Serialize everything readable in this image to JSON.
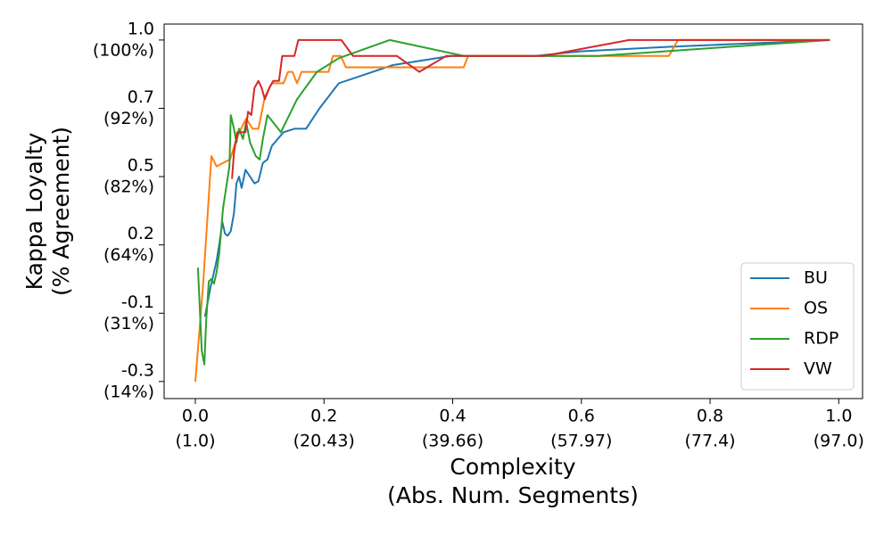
{
  "chart_data": {
    "type": "line",
    "x_label": [
      "Complexity",
      "(Abs. Num. Segments)"
    ],
    "y_label": [
      "Kappa Loyalty",
      "(% Agreement)"
    ],
    "xlim": [
      -0.0485,
      1.037
    ],
    "ylim": [
      -0.35,
      1.07
    ],
    "y_scale": "piecewise",
    "xticks": [
      {
        "value": 0,
        "label": "0.0",
        "label2": "(1.0)"
      },
      {
        "value": 0.2,
        "label": "0.2",
        "label2": "(20.43)"
      },
      {
        "value": 0.4,
        "label": "0.4",
        "label2": "(39.66)"
      },
      {
        "value": 0.6,
        "label": "0.6",
        "label2": "(57.97)"
      },
      {
        "value": 0.8,
        "label": "0.8",
        "label2": "(77.4)"
      },
      {
        "value": 1,
        "label": "1.0",
        "label2": "(97.0)"
      }
    ],
    "yticks": [
      {
        "value": -0.3,
        "label": "-0.3",
        "label2": "(14%)"
      },
      {
        "value": -0.1,
        "label": "-0.1",
        "label2": "(31%)"
      },
      {
        "value": 0.2,
        "label": "0.2",
        "label2": "(64%)"
      },
      {
        "value": 0.5,
        "label": "0.5",
        "label2": "(82%)"
      },
      {
        "value": 0.7,
        "label": "0.7",
        "label2": "(92%)"
      },
      {
        "value": 1,
        "label": "1.0",
        "label2": "(100%)"
      }
    ],
    "legend": "lower right",
    "series": [
      {
        "name": "BU",
        "color": "#1f77b4",
        "x": [
          0.015,
          0.024,
          0.029,
          0.033,
          0.037,
          0.042,
          0.046,
          0.05,
          0.055,
          0.06,
          0.064,
          0.068,
          0.072,
          0.078,
          0.085,
          0.092,
          0.098,
          0.105,
          0.112,
          0.119,
          0.137,
          0.154,
          0.172,
          0.193,
          0.223,
          0.307,
          0.397,
          0.528,
          0.598,
          0.736,
          0.986
        ],
        "values": [
          -0.11,
          0.02,
          0.08,
          0.13,
          0.2,
          0.3,
          0.25,
          0.24,
          0.26,
          0.34,
          0.47,
          0.5,
          0.45,
          0.52,
          0.5,
          0.47,
          0.48,
          0.54,
          0.55,
          0.59,
          0.63,
          0.64,
          0.64,
          0.7,
          0.81,
          0.89,
          0.93,
          0.93,
          0.95,
          0.97,
          1.0
        ]
      },
      {
        "name": "OS",
        "color": "#ff7f0e",
        "x": [
          0,
          0.012,
          0.025,
          0.033,
          0.043,
          0.054,
          0.064,
          0.071,
          0.079,
          0.089,
          0.098,
          0.108,
          0.119,
          0.137,
          0.144,
          0.151,
          0.158,
          0.165,
          0.207,
          0.214,
          0.226,
          0.234,
          0.417,
          0.424,
          0.736,
          0.75,
          0.986
        ],
        "values": [
          -0.3,
          0.02,
          0.56,
          0.53,
          0.54,
          0.55,
          0.61,
          0.64,
          0.67,
          0.64,
          0.64,
          0.75,
          0.81,
          0.81,
          0.86,
          0.86,
          0.81,
          0.86,
          0.86,
          0.93,
          0.93,
          0.88,
          0.88,
          0.93,
          0.93,
          1.0,
          1.0
        ]
      },
      {
        "name": "RDP",
        "color": "#2ca02c",
        "x": [
          0.004,
          0.01,
          0.014,
          0.017,
          0.021,
          0.025,
          0.029,
          0.033,
          0.037,
          0.043,
          0.049,
          0.053,
          0.055,
          0.06,
          0.064,
          0.068,
          0.074,
          0.079,
          0.085,
          0.094,
          0.1,
          0.105,
          0.112,
          0.133,
          0.158,
          0.189,
          0.223,
          0.302,
          0.417,
          0.626,
          0.986
        ],
        "values": [
          0.1,
          -0.21,
          -0.25,
          -0.12,
          0.04,
          0.05,
          0.03,
          0.08,
          0.16,
          0.36,
          0.47,
          0.53,
          0.68,
          0.64,
          0.6,
          0.64,
          0.61,
          0.66,
          0.6,
          0.56,
          0.55,
          0.61,
          0.68,
          0.63,
          0.74,
          0.86,
          0.92,
          1.0,
          0.93,
          0.93,
          1.0
        ]
      },
      {
        "name": "VW",
        "color": "#d62728",
        "x": [
          0.057,
          0.06,
          0.065,
          0.078,
          0.082,
          0.087,
          0.092,
          0.098,
          0.103,
          0.108,
          0.115,
          0.121,
          0.13,
          0.135,
          0.154,
          0.16,
          0.227,
          0.245,
          0.313,
          0.348,
          0.39,
          0.542,
          0.674,
          0.986
        ],
        "values": [
          0.49,
          0.57,
          0.63,
          0.63,
          0.69,
          0.68,
          0.79,
          0.82,
          0.79,
          0.74,
          0.79,
          0.82,
          0.82,
          0.93,
          0.93,
          1.0,
          1.0,
          0.93,
          0.93,
          0.86,
          0.93,
          0.93,
          1.0,
          1.0
        ]
      }
    ]
  }
}
